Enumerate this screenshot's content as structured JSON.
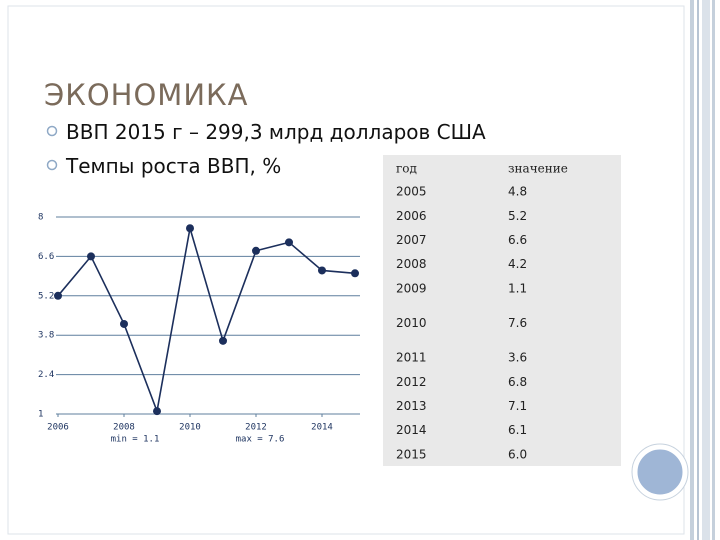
{
  "slide": {
    "title": "ЭКОНОМИКА",
    "bullets": [
      "ВВП 2015 г – 299,3 млрд долларов США",
      "Темпы роста ВВП, %"
    ]
  },
  "chart_data": {
    "type": "line",
    "x": [
      2006,
      2007,
      2008,
      2009,
      2010,
      2011,
      2012,
      2013,
      2014,
      2015
    ],
    "series": [
      {
        "name": "Темпы роста ВВП",
        "color": "#1c2f5c",
        "values": [
          5.2,
          6.6,
          4.2,
          1.1,
          7.6,
          3.6,
          6.8,
          7.1,
          6.1,
          6.0
        ]
      }
    ],
    "xlim": [
      2006,
      2015
    ],
    "xticks": [
      2006,
      2008,
      2010,
      2012,
      2014
    ],
    "ylim": [
      1,
      8
    ],
    "yticks": [
      1,
      2.4,
      3.8,
      5.2,
      6.6,
      8
    ],
    "grid": true,
    "annotations": [
      "min = 1.1",
      "max = 7.6"
    ]
  },
  "table": {
    "header": [
      "год",
      "значение"
    ],
    "rows": [
      [
        "2005",
        "4.8"
      ],
      [
        "2006",
        "5.2"
      ],
      [
        "2007",
        "6.6"
      ],
      [
        "2008",
        "4.2"
      ],
      [
        "2009",
        "1.1"
      ],
      [
        "2010",
        "7.6"
      ],
      [
        "2011",
        "3.6"
      ],
      [
        "2012",
        "6.8"
      ],
      [
        "2013",
        "7.1"
      ],
      [
        "2014",
        "6.1"
      ],
      [
        "2015",
        "6.0"
      ]
    ]
  }
}
